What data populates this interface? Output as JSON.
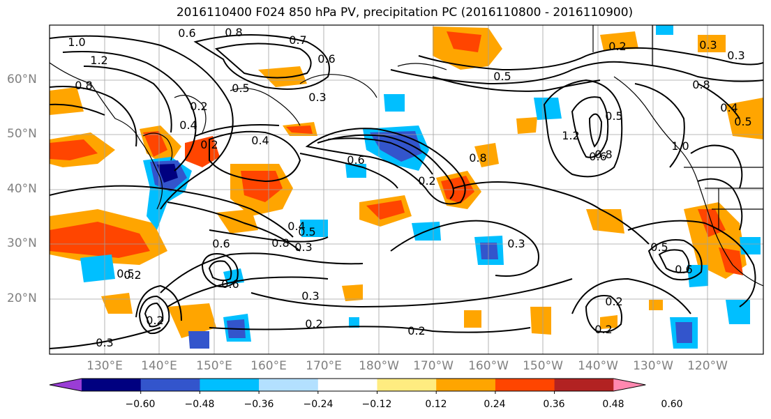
{
  "title": "2016110400 F024 850 hPa PV, precipitation PC (2016110800 - 2016110900)",
  "lat_labels": [
    "60°N",
    "50°N",
    "40°N",
    "30°N",
    "20°N"
  ],
  "lon_labels": [
    "130°E",
    "140°E",
    "150°E",
    "160°E",
    "170°E",
    "180°W",
    "170°W",
    "160°W",
    "150°W",
    "140°W",
    "130°W",
    "120°W"
  ],
  "colorbar": {
    "colors": [
      "#9a3dd6",
      "#000080",
      "#3355cc",
      "#00bfff",
      "#b3e0ff",
      "#ffffff",
      "#ffec80",
      "#ffa500",
      "#ff4500",
      "#b22222",
      "#ff88b0"
    ],
    "tick_labels": [
      "−0.60",
      "−0.48",
      "−0.36",
      "−0.24",
      "−0.12",
      "0.12",
      "0.24",
      "0.36",
      "0.48",
      "0.60"
    ]
  },
  "contour_labels": [
    "1.0",
    "1.2",
    "0.6",
    "0.8",
    "0.7",
    "0.6",
    "0.8",
    "0.2",
    "0.5",
    "0.3",
    "0.4",
    "0.2",
    "0.6",
    "0.8",
    "0.5",
    "0.3",
    "0.2",
    "0.4",
    "0.6",
    "0.5",
    "0.3",
    "0.2",
    "0.2",
    "0.3",
    "0.2",
    "0.4",
    "0.5",
    "0.6",
    "0.2",
    "0.3",
    "0.8",
    "0.5",
    "1.2",
    "1.0",
    "0.8",
    "0.4",
    "0.6",
    "0.5",
    "0.8",
    "0.6",
    "0.2",
    "0.2",
    "0.3",
    "0.2",
    "0.3",
    "0.5",
    "0.8"
  ]
}
